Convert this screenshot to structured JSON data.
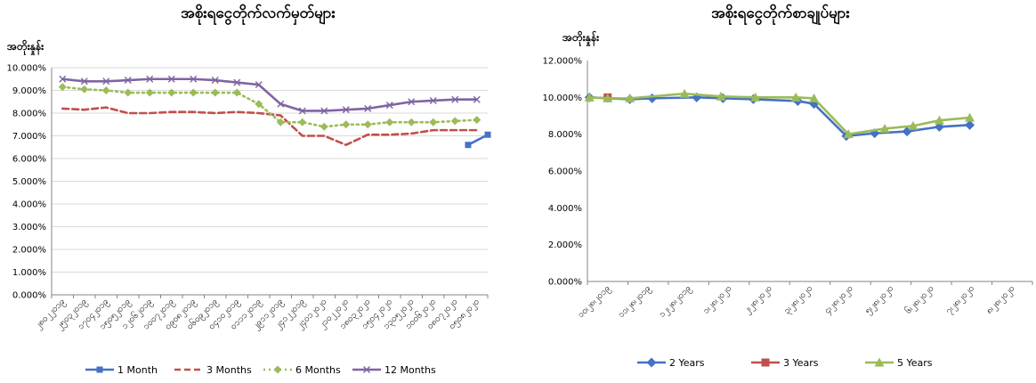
{
  "charts": [
    {
      "id": "left",
      "title": "အစိုးရငွေတိုက်လက်မှတ်များ",
      "ylabel": "အတိုးနှုန်း",
      "chart_data": {
        "type": "line",
        "categories": [
          "၂၈၀၂၂၀၁၉",
          "၂၅၀၃၂၀၁၉",
          "၁၇၀၄၂၀၁၉",
          "၁၅၀၅၂၀၁၉",
          "၁၂၀၆၂၀၁၉",
          "၁၀၀၇၂၀၁၉",
          "၀၉၀၈၂၀၁၉",
          "၀၆၀၉၂၀၁၉",
          "၀၄၁၀၂၀၁၉",
          "၀၁၁၁၂၀၁၉",
          "၂၉၁၁၂၀၁၉",
          "၂၄၁၂၂၀၁၉",
          "၂၄၀၁၂၀၂၀",
          "၂၁၀၂၂၀၂၀",
          "၁၈၀၃၂၀၂၀",
          "၁၅၀၄၂၀၂၀",
          "၁၃၀၅၂၀၂၀",
          "၁၀၀၆၂၀၂၀",
          "၀၈၀၇၂၀၂၀",
          "၀၅၀၈၂၀၂၀"
        ],
        "ylim": [
          0,
          10
        ],
        "yticks": [
          "0.000%",
          "1.000%",
          "2.000%",
          "3.000%",
          "4.000%",
          "5.000%",
          "6.000%",
          "7.000%",
          "8.000%",
          "9.000%",
          "10.000%"
        ],
        "grid": true,
        "legend": "bottom",
        "series": [
          {
            "name": "1 Month",
            "color": "#4472C4",
            "marker": "square",
            "dash": "solid",
            "x": [
              18.6,
              19.5
            ],
            "values": [
              6.6,
              7.05
            ]
          },
          {
            "name": "3 Months",
            "color": "#C0504D",
            "marker": "none",
            "dash": "dash",
            "x": [
              0,
              1,
              2,
              3,
              4,
              5,
              6,
              7,
              8,
              9,
              10,
              11,
              12,
              13,
              14,
              15,
              16,
              17,
              18,
              19
            ],
            "values": [
              8.2,
              8.15,
              8.25,
              8.0,
              8.0,
              8.05,
              8.05,
              8.0,
              8.05,
              8.0,
              7.9,
              7.0,
              7.0,
              6.6,
              7.05,
              7.05,
              7.1,
              7.25,
              7.25,
              7.25
            ]
          },
          {
            "name": "6 Months",
            "color": "#9BBB59",
            "marker": "diamond",
            "dash": "dot",
            "x": [
              0,
              1,
              2,
              3,
              4,
              5,
              6,
              7,
              8,
              9,
              10,
              11,
              12,
              13,
              14,
              15,
              16,
              17,
              18,
              19
            ],
            "values": [
              9.15,
              9.05,
              9.0,
              8.9,
              8.9,
              8.9,
              8.9,
              8.9,
              8.9,
              8.4,
              7.6,
              7.6,
              7.4,
              7.5,
              7.5,
              7.6,
              7.6,
              7.6,
              7.65,
              7.7
            ]
          },
          {
            "name": "12 Months",
            "color": "#8064A2",
            "marker": "x",
            "dash": "solid",
            "x": [
              0,
              1,
              2,
              3,
              4,
              5,
              6,
              7,
              8,
              9,
              10,
              11,
              12,
              13,
              14,
              15,
              16,
              17,
              18,
              19
            ],
            "values": [
              9.5,
              9.4,
              9.4,
              9.45,
              9.5,
              9.5,
              9.5,
              9.45,
              9.35,
              9.25,
              8.4,
              8.1,
              8.1,
              8.15,
              8.2,
              8.35,
              8.5,
              8.55,
              8.6,
              8.6
            ]
          }
        ]
      }
    },
    {
      "id": "right",
      "title": "အစိုးရငွေတိုက်စာချုပ်များ",
      "ylabel": "အတိုးနှုန်း",
      "chart_data": {
        "type": "line",
        "categories": [
          "၁၀၊၂၈၊၂၀၁၉",
          "၁၁၊၂၈၊၂၀၁၉",
          "၁၂၊၂၈၊၂၀၁၉",
          "၁၊၂၈၊၂၀၂၀",
          "၂၊၂၈၊၂၀၂၀",
          "၃၊၂၈၊၂၀၂၀",
          "၄၊၂၈၊၂၀၂၀",
          "၅၊၂၈၊၂၀၂၀",
          "၆၊၂၈၊၂၀၂၀",
          "၇၊၂၈၊၂၀၂၀",
          "၈၊၂၈၊၂၀၂၀"
        ],
        "ylim": [
          0,
          12
        ],
        "yticks": [
          "0.000%",
          "2.000%",
          "4.000%",
          "6.000%",
          "8.000%",
          "10.000%",
          "12.000%"
        ],
        "grid": false,
        "legend": "bottom",
        "series": [
          {
            "name": "2 Years",
            "color": "#4472C4",
            "marker": "diamond",
            "dash": "solid",
            "x": [
              -0.45,
              0.55,
              1.1,
              2.2,
              2.85,
              3.6,
              4.7,
              5.1,
              5.9,
              6.6,
              7.4,
              8.2,
              8.95
            ],
            "values": [
              10.0,
              9.9,
              9.95,
              10.0,
              9.95,
              9.9,
              9.8,
              9.65,
              7.9,
              8.05,
              8.15,
              8.4,
              8.5
            ]
          },
          {
            "name": "3 Years",
            "color": "#C0504D",
            "marker": "square",
            "dash": "solid",
            "x": [
              0.0
            ],
            "values": [
              10.0
            ]
          },
          {
            "name": "5 Years",
            "color": "#9BBB59",
            "marker": "triangle",
            "dash": "solid",
            "x": [
              -0.45,
              0.0,
              0.55,
              1.9,
              2.8,
              3.65,
              4.65,
              5.1,
              5.95,
              6.85,
              7.55,
              8.2,
              8.95
            ],
            "values": [
              10.0,
              9.95,
              9.95,
              10.2,
              10.05,
              10.0,
              10.0,
              9.95,
              8.0,
              8.3,
              8.45,
              8.75,
              8.9
            ]
          }
        ]
      }
    }
  ]
}
